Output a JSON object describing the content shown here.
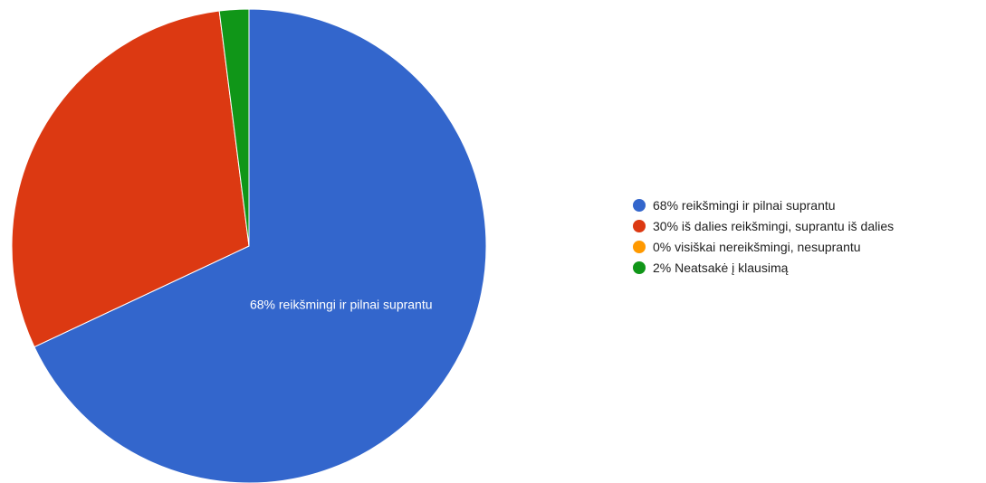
{
  "chart_data": {
    "type": "pie",
    "slices": [
      {
        "label": "68% reikšmingi ir pilnai suprantu",
        "value": 68,
        "color": "#3366cc",
        "show_label": true
      },
      {
        "label": "30% iš dalies reikšmingi, suprantu iš dalies",
        "value": 30,
        "color": "#dc3912",
        "show_label": false
      },
      {
        "label": "0% visiškai nereikšmingi, nesuprantu",
        "value": 0,
        "color": "#ff9900",
        "show_label": false
      },
      {
        "label": "2% Neatsakė į klausimą",
        "value": 2,
        "color": "#109618",
        "show_label": false
      }
    ],
    "legend_position": "right",
    "start_angle": "top",
    "direction": "clockwise"
  }
}
